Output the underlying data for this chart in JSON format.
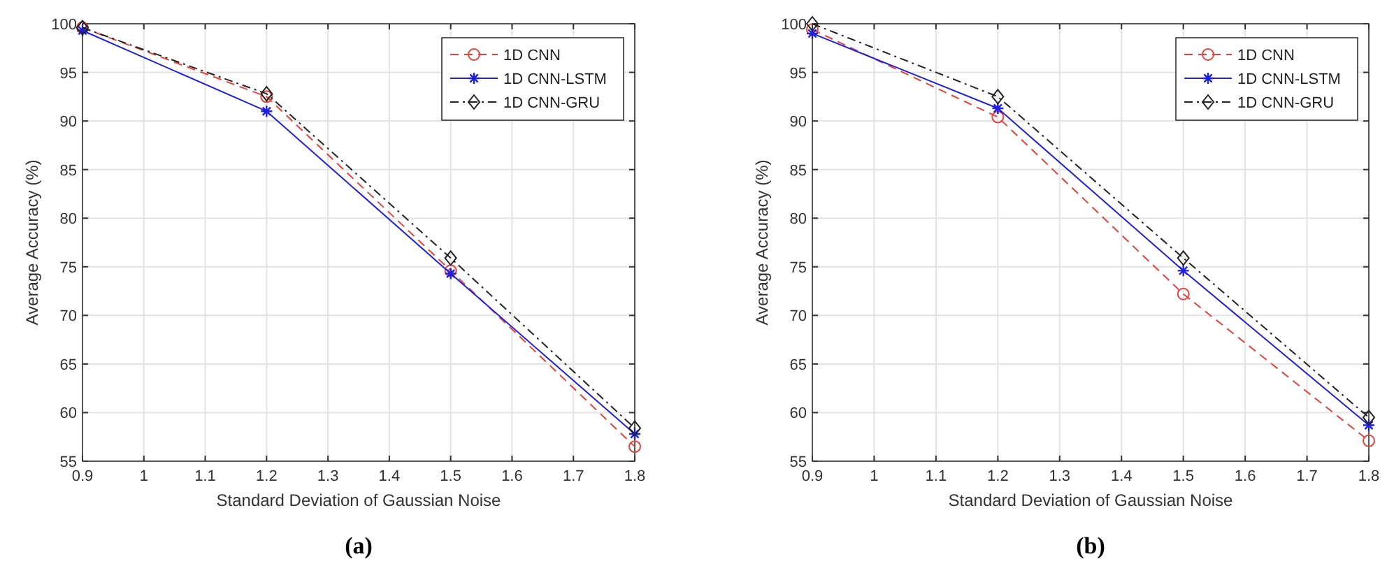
{
  "chart_data": [
    {
      "type": "line",
      "title": "(a)",
      "xlabel": "Standard Deviation of Gaussian Noise",
      "ylabel": "Average Accuracy (%)",
      "x": [
        0.9,
        1.2,
        1.5,
        1.8
      ],
      "xlim": [
        0.9,
        1.8
      ],
      "xticks": [
        0.9,
        1,
        1.1,
        1.2,
        1.3,
        1.4,
        1.5,
        1.6,
        1.7,
        1.8
      ],
      "ylim": [
        55,
        100
      ],
      "yticks": [
        55,
        60,
        65,
        70,
        75,
        80,
        85,
        90,
        95,
        100
      ],
      "grid": true,
      "legend": "top right",
      "series": [
        {
          "name": "1D CNN",
          "color": "#e8403a",
          "values": [
            99.6,
            92.5,
            74.6,
            56.5
          ],
          "marker": "circle",
          "line_style": "dashed"
        },
        {
          "name": "1D CNN-LSTM",
          "color": "#1f1fe0",
          "values": [
            99.3,
            91.0,
            74.3,
            57.8
          ],
          "marker": "cross",
          "line_style": "solid"
        },
        {
          "name": "1D CNN-GRU",
          "color": "#222222",
          "values": [
            99.6,
            92.8,
            75.9,
            58.4
          ],
          "marker": "diamond",
          "line_style": "dashdot"
        }
      ]
    },
    {
      "type": "line",
      "title": "(b)",
      "xlabel": "Standard Deviation of Gaussian Noise",
      "ylabel": "Average Accuracy (%)",
      "x": [
        0.9,
        1.2,
        1.5,
        1.8
      ],
      "xlim": [
        0.9,
        1.8
      ],
      "xticks": [
        0.9,
        1,
        1.1,
        1.2,
        1.3,
        1.4,
        1.5,
        1.6,
        1.7,
        1.8
      ],
      "ylim": [
        55,
        100
      ],
      "yticks": [
        55,
        60,
        65,
        70,
        75,
        80,
        85,
        90,
        95,
        100
      ],
      "grid": true,
      "legend": "top right",
      "series": [
        {
          "name": "1D CNN",
          "color": "#e8403a",
          "values": [
            99.4,
            90.4,
            72.2,
            57.1
          ],
          "marker": "circle",
          "line_style": "dashed"
        },
        {
          "name": "1D CNN-LSTM",
          "color": "#1f1fe0",
          "values": [
            99.0,
            91.3,
            74.6,
            58.7
          ],
          "marker": "cross",
          "line_style": "solid"
        },
        {
          "name": "1D CNN-GRU",
          "color": "#222222",
          "values": [
            100.0,
            92.5,
            75.9,
            59.5
          ],
          "marker": "diamond",
          "line_style": "dashdot"
        }
      ]
    }
  ]
}
